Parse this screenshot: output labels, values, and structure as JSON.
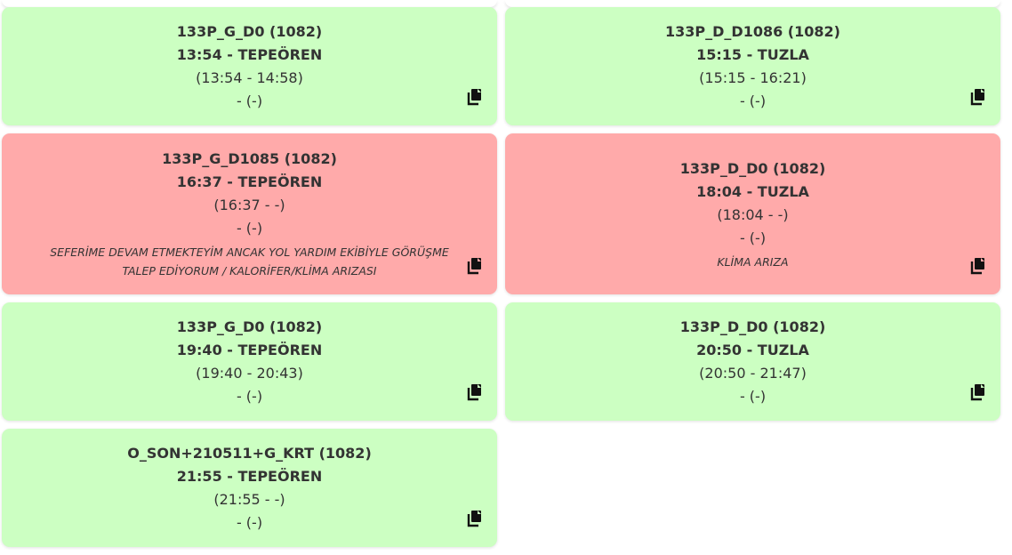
{
  "cards": [
    {
      "status": "ok",
      "code": "133P_G_D0 (1082)",
      "departure": "13:54 - TEPEÖREN",
      "times": "(13:54 - 14:58)",
      "extra": "- (-)",
      "note": ""
    },
    {
      "status": "ok",
      "code": "133P_D_D1086 (1082)",
      "departure": "15:15 - TUZLA",
      "times": "(15:15 - 16:21)",
      "extra": "- (-)",
      "note": ""
    },
    {
      "status": "alert",
      "code": "133P_G_D1085 (1082)",
      "departure": "16:37 - TEPEÖREN",
      "times": "(16:37 - -)",
      "extra": "- (-)",
      "note": "SEFERİME DEVAM ETMEKTEYİM ANCAK YOL YARDIM EKİBİYLE GÖRÜŞME TALEP EDİYORUM / KALORİFER/KLİMA ARIZASI"
    },
    {
      "status": "alert",
      "code": "133P_D_D0 (1082)",
      "departure": "18:04 - TUZLA",
      "times": "(18:04 - -)",
      "extra": "- (-)",
      "note": "KLİMA ARIZA"
    },
    {
      "status": "ok",
      "code": "133P_G_D0 (1082)",
      "departure": "19:40 - TEPEÖREN",
      "times": "(19:40 - 20:43)",
      "extra": "- (-)",
      "note": ""
    },
    {
      "status": "ok",
      "code": "133P_D_D0 (1082)",
      "departure": "20:50 - TUZLA",
      "times": "(20:50 - 21:47)",
      "extra": "- (-)",
      "note": ""
    },
    {
      "status": "ok",
      "code": "O_SON+210511+G_KRT (1082)",
      "departure": "21:55 - TEPEÖREN",
      "times": "(21:55 - -)",
      "extra": "- (-)",
      "note": ""
    }
  ],
  "icons": {
    "copy": "copy-icon"
  },
  "colors": {
    "ok": "#ccffc2",
    "alert": "#ffaaaa",
    "text": "#333333"
  }
}
